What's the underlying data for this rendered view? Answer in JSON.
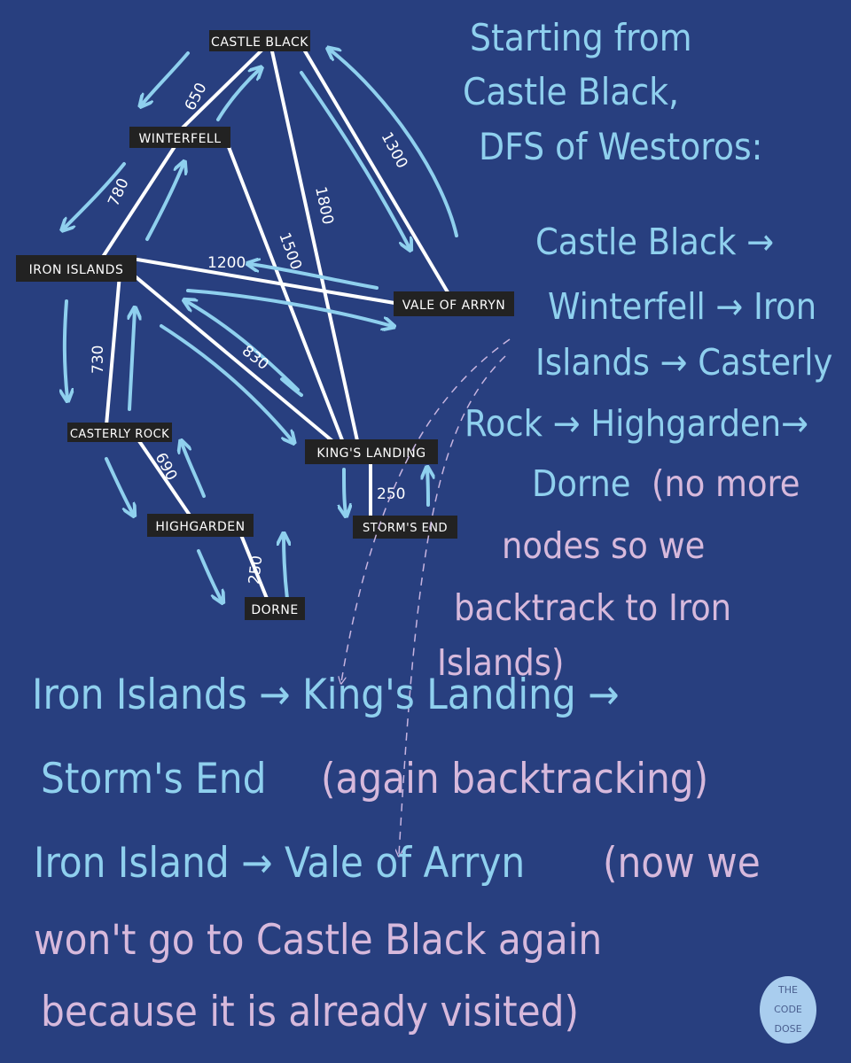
{
  "nodes": [
    {
      "id": "castle_black",
      "label": "CASTLE BLACK"
    },
    {
      "id": "winterfell",
      "label": "WINTERFELL"
    },
    {
      "id": "iron_islands",
      "label": "IRON ISLANDS"
    },
    {
      "id": "vale_of_arryn",
      "label": "VALE OF ARRYN"
    },
    {
      "id": "casterly_rock",
      "label": "CASTERLY ROCK"
    },
    {
      "id": "kings_landing",
      "label": "KING'S LANDING"
    },
    {
      "id": "highgarden",
      "label": "HIGHGARDEN"
    },
    {
      "id": "storms_end",
      "label": "STORM'S END"
    },
    {
      "id": "dorne",
      "label": "DORNE"
    }
  ],
  "edges": [
    {
      "from": "castle_black",
      "to": "winterfell",
      "weight": "650"
    },
    {
      "from": "castle_black",
      "to": "vale_of_arryn",
      "weight": "1300"
    },
    {
      "from": "castle_black",
      "to": "kings_landing",
      "weight": "1800"
    },
    {
      "from": "winterfell",
      "to": "iron_islands",
      "weight": "780"
    },
    {
      "from": "winterfell",
      "to": "kings_landing",
      "weight": "1500"
    },
    {
      "from": "iron_islands",
      "to": "vale_of_arryn",
      "weight": "1200"
    },
    {
      "from": "iron_islands",
      "to": "casterly_rock",
      "weight": "730"
    },
    {
      "from": "iron_islands",
      "to": "kings_landing",
      "weight": "830"
    },
    {
      "from": "casterly_rock",
      "to": "highgarden",
      "weight": "690"
    },
    {
      "from": "highgarden",
      "to": "dorne",
      "weight": "250"
    },
    {
      "from": "kings_landing",
      "to": "storms_end",
      "weight": "250"
    }
  ],
  "notes": {
    "heading": [
      "Starting from",
      "Castle Black,",
      "DFS of Westoros:"
    ],
    "path1": [
      "Castle Black →",
      "Winterfell → Iron",
      "Islands → Casterly",
      "Rock → Highgarden→"
    ],
    "path2_start": "Dorne",
    "path2_note": [
      "(no more",
      "nodes so we",
      "backtrack to Iron",
      "Islands)"
    ],
    "line1": "Iron Islands → King's Landing →",
    "line2_blue": "Storm's End",
    "line2_pink": "(again backtracking)",
    "line3_blue": "Iron Island → Vale of Arryn",
    "line3_pink": "(now we",
    "line4": "won't go to Castle Black again",
    "line5": "because it is already visited)"
  },
  "logo": {
    "lines": [
      "THE",
      "CODE",
      "DOSE"
    ]
  },
  "colors": {
    "background": "#283f7f",
    "text_blue": "#8fd0ee",
    "text_pink": "#d7b9dc",
    "edge": "#ffffff",
    "node_fill": "#222222"
  }
}
